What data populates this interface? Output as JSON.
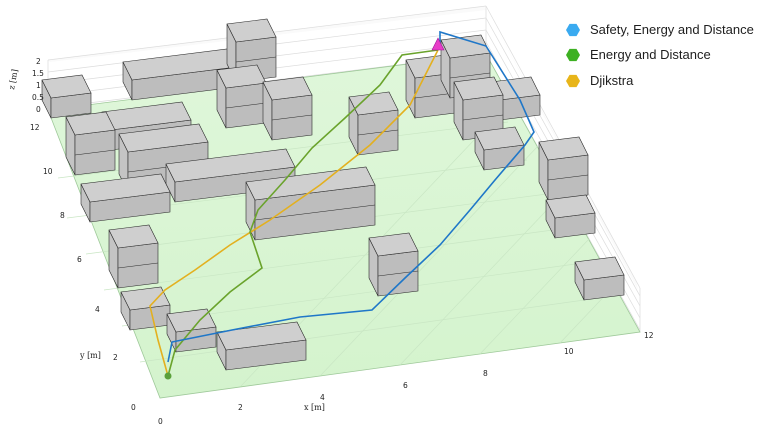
{
  "colors": {
    "floor": "#d8f5d2",
    "block_top": "#cfcfcf",
    "block_left": "#c4c4c4",
    "block_front": "#bdbdbd",
    "grid": "#d6d6d6",
    "safety": "#1f77c8",
    "energy": "#6aa32c",
    "dijkstra": "#e3b01f",
    "goal": "#e83ec8",
    "start": "#5aa03a"
  },
  "legend": [
    {
      "label": "Safety, Energy and Distance",
      "color": "#3aaaf0"
    },
    {
      "label": "Energy and Distance",
      "color": "#3db022"
    },
    {
      "label": "Djikstra",
      "color": "#e8b51a"
    }
  ],
  "axes": {
    "x_label": "x [m]",
    "y_label": "y [m]",
    "z_label": "z [m]",
    "x_ticks": [
      "0",
      "2",
      "4",
      "6",
      "8",
      "10",
      "12"
    ],
    "y_ticks": [
      "0",
      "2",
      "4",
      "6",
      "8",
      "10",
      "12"
    ],
    "z_ticks": [
      "0",
      "0.5",
      "1",
      "1.5",
      "2"
    ]
  }
}
